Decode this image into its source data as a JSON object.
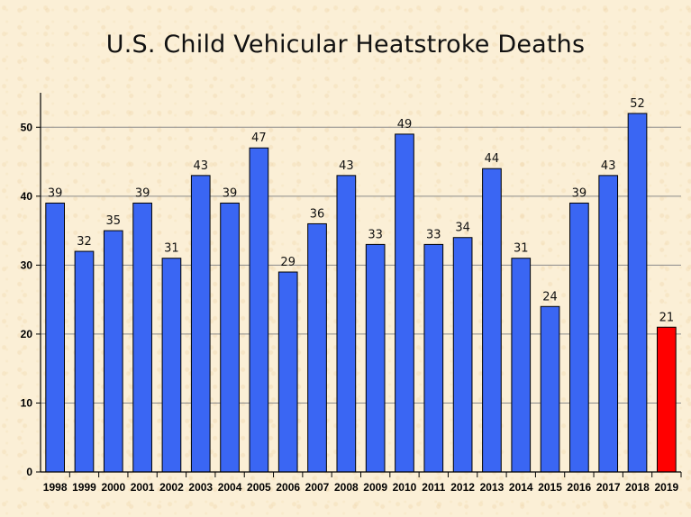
{
  "chart_data": {
    "type": "bar",
    "title": "U.S. Child Vehicular Heatstroke Deaths",
    "xlabel": "",
    "ylabel": "",
    "ylim": [
      0,
      55
    ],
    "yticks": [
      0,
      10,
      20,
      30,
      40,
      50
    ],
    "grid": true,
    "categories": [
      "1998",
      "1999",
      "2000",
      "2001",
      "2002",
      "2003",
      "2004",
      "2005",
      "2006",
      "2007",
      "2008",
      "2009",
      "2010",
      "2011",
      "2012",
      "2013",
      "2014",
      "2015",
      "2016",
      "2017",
      "2018",
      "2019"
    ],
    "values": [
      39,
      32,
      35,
      39,
      31,
      43,
      39,
      47,
      29,
      36,
      43,
      33,
      49,
      33,
      34,
      44,
      31,
      24,
      39,
      43,
      52,
      21
    ],
    "bar_colors": [
      "#3a66f3",
      "#3a66f3",
      "#3a66f3",
      "#3a66f3",
      "#3a66f3",
      "#3a66f3",
      "#3a66f3",
      "#3a66f3",
      "#3a66f3",
      "#3a66f3",
      "#3a66f3",
      "#3a66f3",
      "#3a66f3",
      "#3a66f3",
      "#3a66f3",
      "#3a66f3",
      "#3a66f3",
      "#3a66f3",
      "#3a66f3",
      "#3a66f3",
      "#3a66f3",
      "#ff0000"
    ]
  }
}
